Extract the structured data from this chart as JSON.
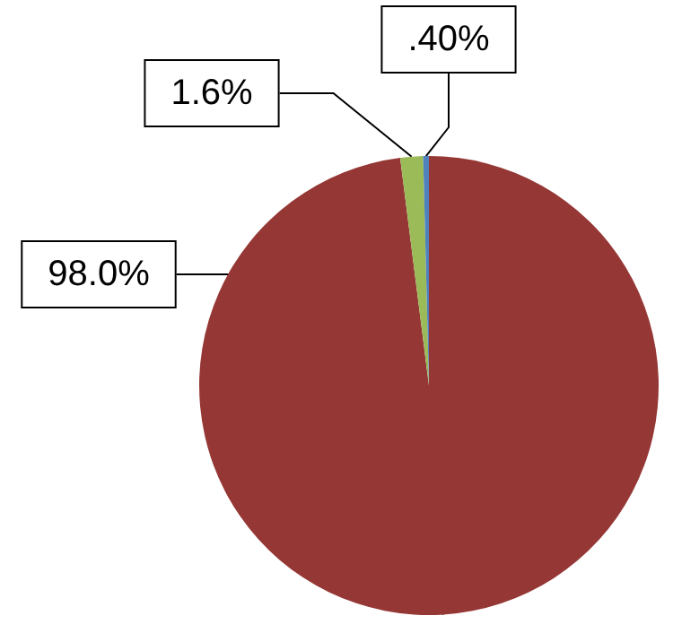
{
  "chart_data": {
    "type": "pie",
    "categories": [
      null,
      null,
      null
    ],
    "values": [
      98.0,
      1.6,
      0.4
    ],
    "colors": [
      "#953735",
      "#9bbb59",
      "#4f81bd"
    ],
    "value_labels": [
      "98.0%",
      "1.6%",
      ".40%"
    ]
  }
}
